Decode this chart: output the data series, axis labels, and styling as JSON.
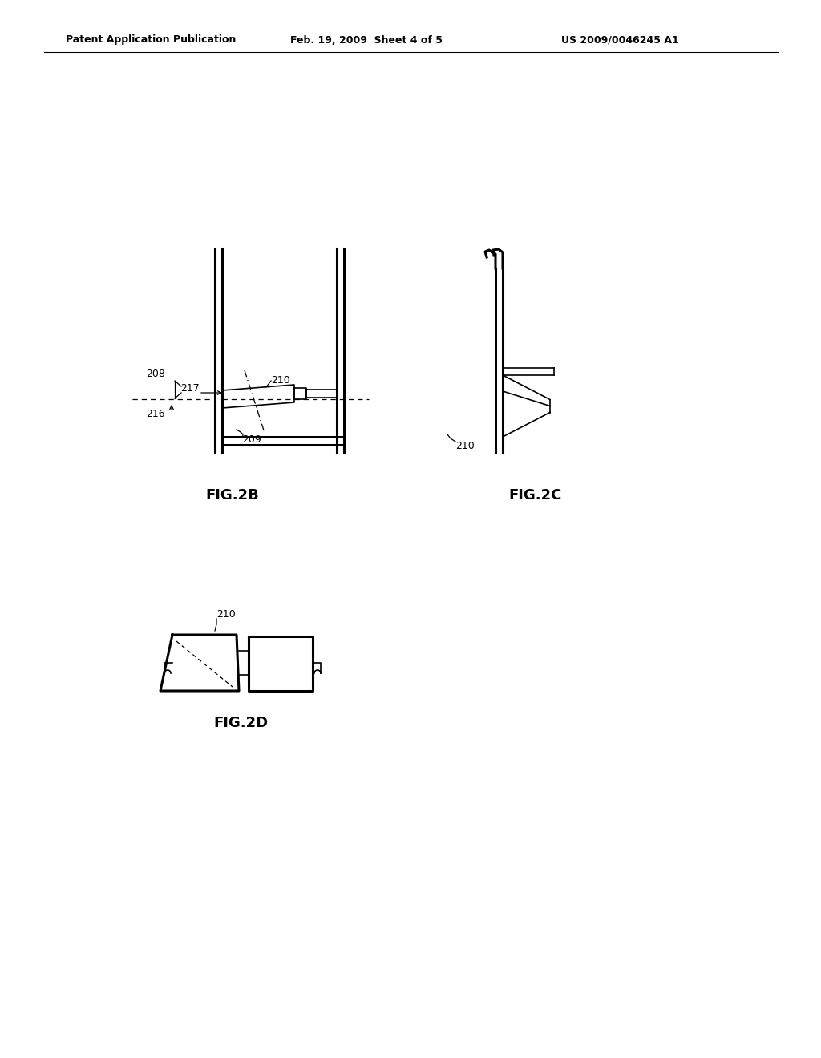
{
  "bg_color": "#ffffff",
  "header_left": "Patent Application Publication",
  "header_center": "Feb. 19, 2009  Sheet 4 of 5",
  "header_right": "US 2009/0046245 A1",
  "fig2b_label": "FIG.2B",
  "fig2c_label": "FIG.2C",
  "fig2d_label": "FIG.2D",
  "label_208": "208",
  "label_217": "217",
  "label_210_2b": "210",
  "label_216": "216",
  "label_209": "209",
  "label_210_2c": "210",
  "label_210_2d": "210"
}
